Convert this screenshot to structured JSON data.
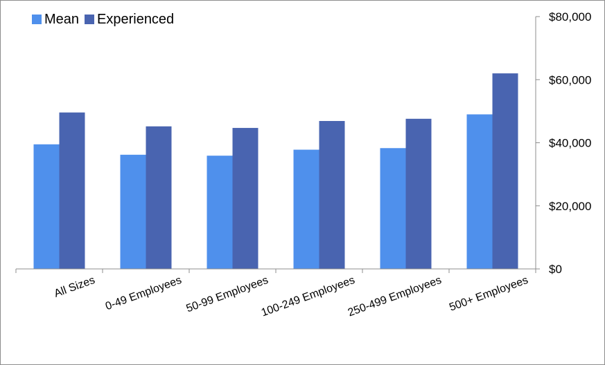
{
  "chart_data": {
    "type": "bar",
    "categories": [
      "All Sizes",
      "0-49 Employees",
      "50-99 Employees",
      "100-249 Employees",
      "250-499 Employees",
      "500+ Employees"
    ],
    "series": [
      {
        "name": "Mean",
        "values": [
          39500,
          36200,
          35900,
          37800,
          38300,
          49000
        ]
      },
      {
        "name": "Experienced",
        "values": [
          49600,
          45200,
          44700,
          46900,
          47600,
          62000
        ]
      }
    ],
    "y_ticks": [
      0,
      20000,
      40000,
      60000,
      80000
    ],
    "y_tick_labels": [
      "$0",
      "$20,000",
      "$40,000",
      "$60,000",
      "$80,000"
    ],
    "ylim": [
      0,
      80000
    ],
    "yaxis_position": "right",
    "legend_position": "top-left",
    "grid": false,
    "colors": {
      "Mean": "#4f90ec",
      "Experienced": "#4964b0",
      "axis": "#8c8c8c"
    }
  }
}
